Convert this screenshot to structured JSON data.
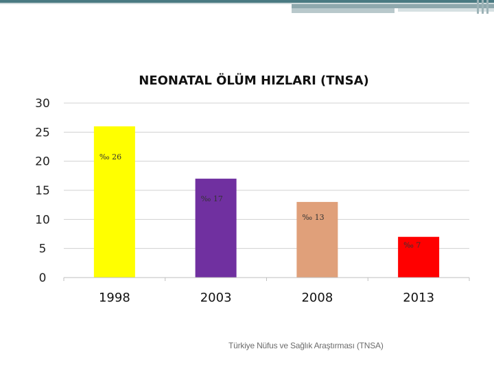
{
  "chart_data": {
    "type": "bar",
    "title": "NEONATAL ÖLÜM HIZLARI (TNSA)",
    "categories": [
      "1998",
      "2003",
      "2008",
      "2013"
    ],
    "values": [
      26,
      17,
      13,
      7
    ],
    "data_labels": [
      "‰ 26",
      "‰ 17",
      "‰ 13",
      "‰ 7"
    ],
    "colors": [
      "#ffff00",
      "#7030a0",
      "#e0a07a",
      "#ff0000"
    ],
    "ylim": [
      0,
      30
    ],
    "yticks": [
      "0",
      "5",
      "10",
      "15",
      "20",
      "25",
      "30"
    ],
    "grid": true,
    "legend": "none"
  },
  "source": "Türkiye Nüfus ve Sağlık Araştırması (TNSA)"
}
